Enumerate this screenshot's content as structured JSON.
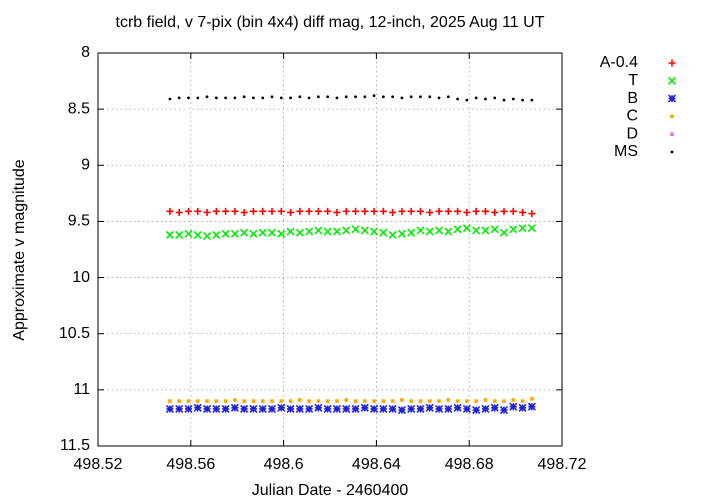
{
  "chart_data": {
    "type": "scatter",
    "title": "tcrb field, v 7-pix (bin 4x4) diff mag, 12-inch, 2025 Aug 11 UT",
    "xlabel": "Julian Date - 2460400",
    "ylabel": "Approximate v magnitude",
    "xlim": [
      498.52,
      498.72
    ],
    "xticks": [
      498.52,
      498.56,
      498.6,
      498.64,
      498.68,
      498.72
    ],
    "ylim": [
      11.5,
      8
    ],
    "yticks": [
      8,
      8.5,
      9,
      9.5,
      10,
      10.5,
      11,
      11.5
    ],
    "grid": true,
    "legend": "outside-right",
    "x": [
      498.551,
      498.555,
      498.559,
      498.563,
      498.567,
      498.571,
      498.575,
      498.579,
      498.583,
      498.587,
      498.591,
      498.595,
      498.599,
      498.603,
      498.607,
      498.611,
      498.615,
      498.619,
      498.623,
      498.627,
      498.631,
      498.635,
      498.639,
      498.643,
      498.647,
      498.651,
      498.655,
      498.659,
      498.663,
      498.667,
      498.671,
      498.675,
      498.679,
      498.683,
      498.687,
      498.691,
      498.695,
      498.699,
      498.703,
      498.707
    ],
    "series": [
      {
        "name": "A-0.4",
        "color": "#ff0000",
        "marker": "plus",
        "values": [
          9.41,
          9.42,
          9.41,
          9.41,
          9.42,
          9.41,
          9.41,
          9.41,
          9.42,
          9.41,
          9.41,
          9.41,
          9.41,
          9.42,
          9.41,
          9.41,
          9.41,
          9.41,
          9.42,
          9.41,
          9.41,
          9.41,
          9.41,
          9.41,
          9.42,
          9.41,
          9.41,
          9.41,
          9.42,
          9.41,
          9.41,
          9.41,
          9.42,
          9.41,
          9.41,
          9.42,
          9.41,
          9.41,
          9.42,
          9.43
        ]
      },
      {
        "name": "T",
        "color": "#00ee00",
        "marker": "cross",
        "values": [
          9.62,
          9.62,
          9.61,
          9.62,
          9.63,
          9.62,
          9.61,
          9.61,
          9.6,
          9.61,
          9.6,
          9.6,
          9.61,
          9.59,
          9.6,
          9.59,
          9.58,
          9.59,
          9.59,
          9.58,
          9.57,
          9.58,
          9.59,
          9.6,
          9.62,
          9.61,
          9.6,
          9.58,
          9.59,
          9.58,
          9.59,
          9.57,
          9.56,
          9.58,
          9.58,
          9.57,
          9.6,
          9.57,
          9.56,
          9.56
        ]
      },
      {
        "name": "B",
        "color": "#2020d8",
        "marker": "star",
        "values": [
          11.17,
          11.17,
          11.17,
          11.16,
          11.17,
          11.17,
          11.17,
          11.16,
          11.17,
          11.17,
          11.17,
          11.17,
          11.16,
          11.17,
          11.17,
          11.17,
          11.16,
          11.17,
          11.17,
          11.17,
          11.17,
          11.16,
          11.17,
          11.17,
          11.17,
          11.18,
          11.17,
          11.17,
          11.16,
          11.17,
          11.17,
          11.16,
          11.17,
          11.18,
          11.17,
          11.16,
          11.18,
          11.15,
          11.16,
          11.15
        ]
      },
      {
        "name": "C",
        "color": "#ffa500",
        "marker": "square",
        "values": [
          11.1,
          11.1,
          11.1,
          11.1,
          11.1,
          11.1,
          11.1,
          11.09,
          11.1,
          11.1,
          11.1,
          11.1,
          11.1,
          11.1,
          11.09,
          11.1,
          11.1,
          11.1,
          11.1,
          11.09,
          11.1,
          11.1,
          11.1,
          11.1,
          11.1,
          11.09,
          11.1,
          11.1,
          11.1,
          11.1,
          11.09,
          11.1,
          11.1,
          11.1,
          11.09,
          11.1,
          11.1,
          11.09,
          11.1,
          11.08
        ]
      },
      {
        "name": "D",
        "color": "#e070e0",
        "marker": "square",
        "values": [
          null,
          null,
          null,
          null,
          null,
          null,
          null,
          null,
          null,
          null,
          null,
          null,
          null,
          null,
          null,
          null,
          null,
          null,
          null,
          null,
          null,
          null,
          null,
          null,
          null,
          null,
          null,
          null,
          null,
          null,
          null,
          null,
          null,
          null,
          null,
          null,
          null,
          null,
          null,
          null
        ]
      },
      {
        "name": "MS",
        "color": "#000000",
        "marker": "dot",
        "values": [
          8.41,
          8.4,
          8.4,
          8.4,
          8.39,
          8.4,
          8.4,
          8.4,
          8.39,
          8.4,
          8.4,
          8.39,
          8.4,
          8.4,
          8.39,
          8.4,
          8.39,
          8.39,
          8.4,
          8.39,
          8.39,
          8.39,
          8.38,
          8.39,
          8.39,
          8.4,
          8.39,
          8.39,
          8.39,
          8.4,
          8.39,
          8.41,
          8.42,
          8.4,
          8.41,
          8.4,
          8.42,
          8.41,
          8.42,
          8.42
        ]
      }
    ]
  }
}
